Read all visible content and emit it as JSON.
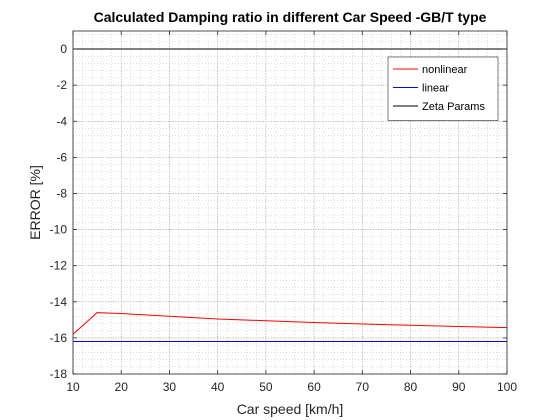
{
  "chart_data": {
    "type": "line",
    "title": "Calculated Damping ratio in different Car Speed -GB/T type",
    "xlabel": "Car speed [km/h]",
    "ylabel": "ERROR [%]",
    "xlim": [
      10,
      100
    ],
    "ylim": [
      -18,
      1
    ],
    "xticks": [
      10,
      20,
      30,
      40,
      50,
      60,
      70,
      80,
      90,
      100
    ],
    "yticks": [
      0,
      -2,
      -4,
      -6,
      -8,
      -10,
      -12,
      -14,
      -16,
      -18
    ],
    "x_minor_step": 2,
    "y_minor_step": 0.4,
    "grid": true,
    "legend_position": "top-right",
    "series": [
      {
        "name": "nonlinear",
        "color": "#ff0000",
        "x": [
          10,
          15,
          20,
          30,
          40,
          50,
          60,
          70,
          80,
          90,
          100
        ],
        "y": [
          -15.8,
          -14.6,
          -14.65,
          -14.8,
          -14.95,
          -15.05,
          -15.15,
          -15.23,
          -15.3,
          -15.37,
          -15.43
        ]
      },
      {
        "name": "linear",
        "color": "#0000ff",
        "x": [
          10,
          100
        ],
        "y": [
          -16.2,
          -16.2
        ]
      },
      {
        "name": "Zeta Params",
        "color": "#000000",
        "x": [
          10,
          100
        ],
        "y": [
          0,
          0
        ]
      }
    ]
  }
}
